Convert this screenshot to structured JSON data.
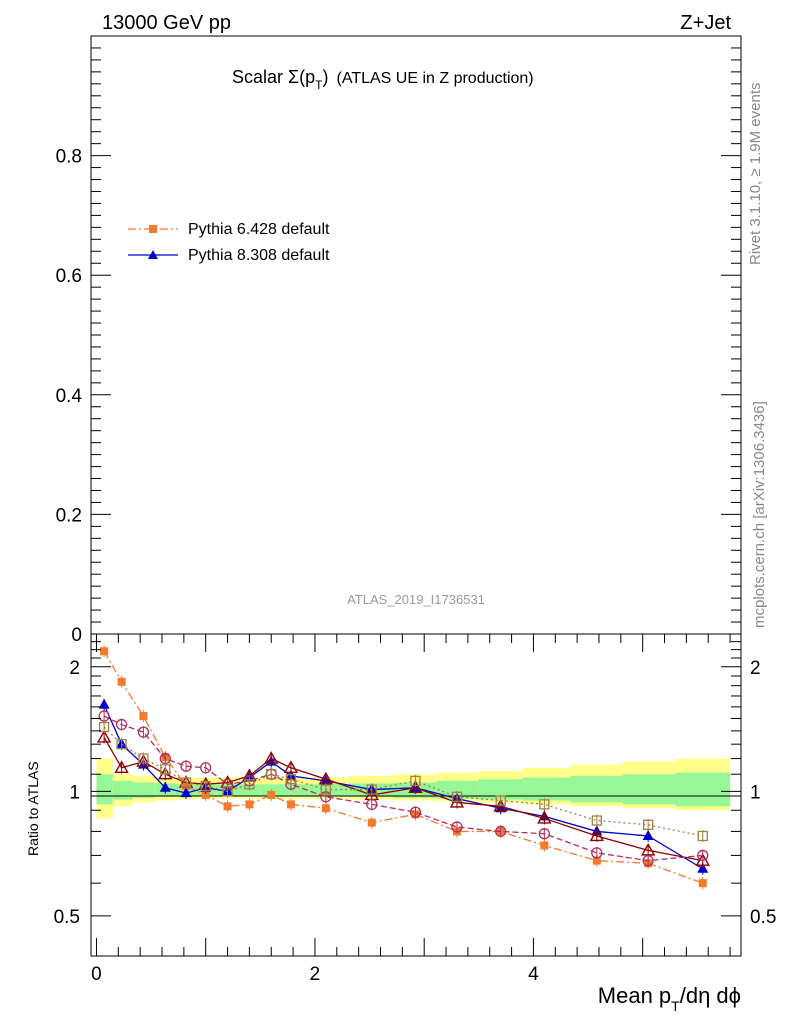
{
  "header": {
    "energy": "13000 GeV pp",
    "process": "Z+Jet",
    "title_main": "Scalar ",
    "title_sigma": "Σ(p",
    "title_sub": "T",
    "title_close": ")",
    "title_rest": "(ATLAS UE in Z production)",
    "watermark": "ATLAS_2019_I1736531",
    "side_rivet": "Rivet 3.1.10, ≥ 1.9M events",
    "side_mcplots": "mcplots.cern.ch [arXiv:1306.3436]"
  },
  "chart_data": [
    {
      "type": "line",
      "panel": "main",
      "ylim": [
        0,
        1.0
      ],
      "y_ticks": [
        "0",
        "0.2",
        "0.4",
        "0.6",
        "0.8"
      ],
      "legend": [
        {
          "label": "Pythia 6.428 default",
          "color": "#f47a2c",
          "marker": "square",
          "dash": "dashdot"
        },
        {
          "label": "Pythia 8.308 default",
          "color": "#0000cc",
          "marker": "triangle",
          "dash": "solid"
        }
      ],
      "legend_position": "upper-left"
    },
    {
      "type": "line",
      "panel": "ratio",
      "ylabel": "Ratio to ATLAS",
      "x_axis_label": "Mean p",
      "x_axis_sub": "T",
      "x_axis_rest": "/dη dϕ",
      "xlim": [
        -0.05,
        5.9
      ],
      "ylim_log": [
        0.4,
        2.4
      ],
      "x_ticks": [
        "0",
        "2",
        "4"
      ],
      "y_ticks": [
        "0.5",
        "1",
        "2"
      ],
      "x": [
        0.07,
        0.23,
        0.43,
        0.63,
        0.82,
        1.0,
        1.2,
        1.4,
        1.6,
        1.78,
        2.1,
        2.52,
        2.92,
        3.3,
        3.7,
        4.1,
        4.58,
        5.05,
        5.55
      ],
      "band": {
        "yellow_lo": [
          0.86,
          0.92,
          0.94,
          0.95,
          0.955,
          0.96,
          0.96,
          0.96,
          0.96,
          0.96,
          0.96,
          0.955,
          0.95,
          0.945,
          0.94,
          0.93,
          0.92,
          0.91,
          0.9
        ],
        "yellow_hi": [
          1.2,
          1.1,
          1.09,
          1.08,
          1.08,
          1.08,
          1.08,
          1.08,
          1.08,
          1.08,
          1.08,
          1.09,
          1.1,
          1.11,
          1.12,
          1.14,
          1.16,
          1.18,
          1.2
        ],
        "green_lo": [
          0.93,
          0.955,
          0.965,
          0.97,
          0.975,
          0.975,
          0.975,
          0.975,
          0.975,
          0.975,
          0.975,
          0.97,
          0.965,
          0.96,
          0.955,
          0.95,
          0.94,
          0.93,
          0.92
        ],
        "green_hi": [
          1.1,
          1.06,
          1.05,
          1.045,
          1.04,
          1.04,
          1.04,
          1.04,
          1.04,
          1.04,
          1.04,
          1.045,
          1.05,
          1.06,
          1.07,
          1.08,
          1.09,
          1.1,
          1.11
        ]
      },
      "series": [
        {
          "name": "Pythia 6.428 default",
          "color": "#f47a2c",
          "marker": "square-filled",
          "dash": "8,3,2,3",
          "values": [
            2.18,
            1.84,
            1.52,
            1.21,
            1.03,
            0.98,
            0.92,
            0.93,
            0.98,
            0.93,
            0.91,
            0.84,
            0.88,
            0.8,
            0.8,
            0.74,
            0.68,
            0.67,
            0.6
          ]
        },
        {
          "color": "#0000cc",
          "marker": "triangle-filled",
          "dash": "none",
          "values": [
            1.62,
            1.3,
            1.16,
            1.02,
            0.99,
            1.02,
            1.0,
            1.08,
            1.18,
            1.09,
            1.06,
            1.01,
            1.02,
            0.96,
            0.91,
            0.87,
            0.8,
            0.78,
            0.65
          ]
        },
        {
          "color": "#8b0000",
          "marker": "triangle-open",
          "dash": "none",
          "values": [
            1.35,
            1.14,
            1.18,
            1.1,
            1.05,
            1.04,
            1.05,
            1.09,
            1.2,
            1.14,
            1.07,
            0.98,
            1.02,
            0.94,
            0.92,
            0.86,
            0.78,
            0.72,
            0.68
          ]
        },
        {
          "color": "#b03060",
          "marker": "circle-open",
          "dash": "6,3",
          "values": [
            1.52,
            1.45,
            1.39,
            1.2,
            1.15,
            1.14,
            1.04,
            1.06,
            1.1,
            1.04,
            0.97,
            0.93,
            0.89,
            0.82,
            0.8,
            0.79,
            0.71,
            0.68,
            0.7
          ]
        },
        {
          "color": "#a08040",
          "marker": "square-open",
          "dash": "2,3",
          "values": [
            1.43,
            1.3,
            1.2,
            1.13,
            1.05,
            1.03,
            1.0,
            1.04,
            1.1,
            1.07,
            1.01,
            1.01,
            1.06,
            0.97,
            0.95,
            0.93,
            0.85,
            0.83,
            0.78
          ]
        }
      ]
    }
  ]
}
